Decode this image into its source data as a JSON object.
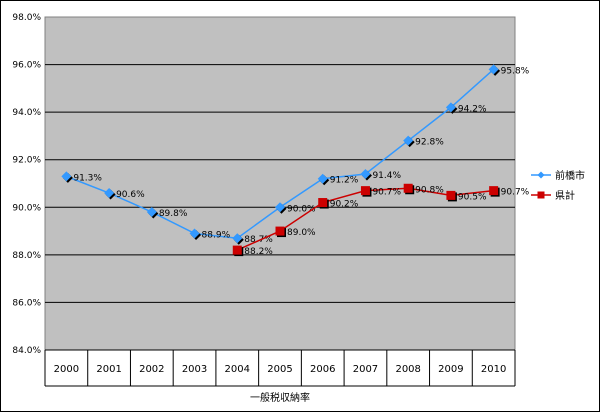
{
  "chart_data": {
    "type": "line",
    "title": "",
    "xlabel": "一般税収納率",
    "ylabel": "",
    "categories": [
      "2000",
      "2001",
      "2002",
      "2003",
      "2004",
      "2005",
      "2006",
      "2007",
      "2008",
      "2009",
      "2010"
    ],
    "ylim": [
      84.0,
      98.0
    ],
    "yticks": [
      "98.0%",
      "96.0%",
      "94.0%",
      "92.0%",
      "90.0%",
      "88.0%",
      "86.0%",
      "84.0%"
    ],
    "ytick_values": [
      98,
      96,
      94,
      92,
      90,
      88,
      86,
      84
    ],
    "grid": true,
    "legend_position": "right",
    "series": [
      {
        "name": "前橋市",
        "color": "#3399FF",
        "marker": "diamond",
        "values": [
          91.3,
          90.6,
          89.8,
          88.9,
          88.7,
          90.0,
          91.2,
          91.4,
          92.8,
          94.2,
          95.8
        ],
        "labels": [
          "91.3%",
          "90.6%",
          "89.8%",
          "88.9%",
          "88.7%",
          "90.0%",
          "91.2%",
          "91.4%",
          "92.8%",
          "94.2%",
          "95.8%"
        ]
      },
      {
        "name": "県計",
        "color": "#CC0000",
        "marker": "square",
        "values": [
          null,
          null,
          null,
          null,
          88.2,
          89.0,
          90.2,
          90.7,
          90.8,
          90.5,
          90.7
        ],
        "labels": [
          "",
          "",
          "",
          "",
          "88.2%",
          "89.0%",
          "90.2%",
          "90.7%",
          "90.8%",
          "90.5%",
          "90.7%"
        ]
      }
    ]
  }
}
